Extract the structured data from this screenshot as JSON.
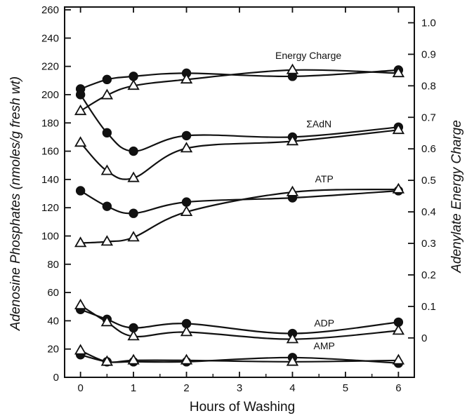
{
  "chart_data": {
    "type": "line",
    "xlabel": "Hours of Washing",
    "ylabel": "Adenosine Phosphates (nmoles/g fresh wt)",
    "y2label": "Adenylate Energy Charge",
    "xlim": [
      -0.3,
      6.3
    ],
    "ylim": [
      0,
      262
    ],
    "y2lim": [
      -0.125,
      1.05
    ],
    "x_ticks": [
      0,
      1,
      2,
      3,
      4,
      5,
      6
    ],
    "y_ticks": [
      0,
      20,
      40,
      60,
      80,
      100,
      120,
      140,
      160,
      180,
      200,
      220,
      240,
      260
    ],
    "y2_ticks": [
      "0",
      "0.1",
      "0.2",
      "0.3",
      "0.4",
      "0.5",
      "0.6",
      "0.7",
      "0.8",
      "0.9",
      "1.0"
    ],
    "y2_tick_values": [
      0,
      0.1,
      0.2,
      0.3,
      0.4,
      0.5,
      0.6,
      0.7,
      0.8,
      0.9,
      1.0
    ],
    "markers": {
      "filled": "filled-circle",
      "open": "open-triangle"
    },
    "groups": [
      {
        "label": "Energy Charge",
        "axis": "right",
        "filled": {
          "x": [
            0,
            0.5,
            1,
            2,
            4,
            6
          ],
          "y": [
            0.79,
            0.82,
            0.83,
            0.84,
            0.83,
            0.85
          ]
        },
        "open": {
          "x": [
            0,
            0.5,
            1,
            2,
            4,
            6
          ],
          "y": [
            0.72,
            0.77,
            0.8,
            0.82,
            0.85,
            0.84
          ]
        }
      },
      {
        "label": "ΣAdN",
        "axis": "left",
        "filled": {
          "x": [
            0,
            0.5,
            1,
            2,
            4,
            6
          ],
          "y": [
            200,
            173,
            160,
            171,
            170,
            177
          ]
        },
        "open": {
          "x": [
            0,
            0.5,
            1,
            2,
            4,
            6
          ],
          "y": [
            166,
            146,
            141,
            162,
            167,
            175
          ]
        }
      },
      {
        "label": "ATP",
        "axis": "left",
        "filled": {
          "x": [
            0,
            0.5,
            1,
            2,
            4,
            6
          ],
          "y": [
            132,
            121,
            116,
            124,
            127,
            132
          ]
        },
        "open": {
          "x": [
            0,
            0.5,
            1,
            2,
            4,
            6
          ],
          "y": [
            95,
            96,
            99,
            117,
            131,
            133
          ]
        }
      },
      {
        "label": "ADP",
        "axis": "left",
        "filled": {
          "x": [
            0,
            0.5,
            1,
            2,
            4,
            6
          ],
          "y": [
            48,
            41,
            35,
            38,
            31,
            39
          ]
        },
        "open": {
          "x": [
            0,
            0.5,
            1,
            2,
            4,
            6
          ],
          "y": [
            51,
            39,
            29,
            32,
            27,
            33
          ]
        }
      },
      {
        "label": "AMP",
        "axis": "left",
        "filled": {
          "x": [
            0,
            0.5,
            1,
            2,
            4,
            6
          ],
          "y": [
            16,
            11,
            11,
            11,
            14,
            10
          ]
        },
        "open": {
          "x": [
            0,
            0.5,
            1,
            2,
            4,
            6
          ],
          "y": [
            19,
            11,
            12,
            12,
            11,
            12
          ]
        }
      }
    ]
  }
}
